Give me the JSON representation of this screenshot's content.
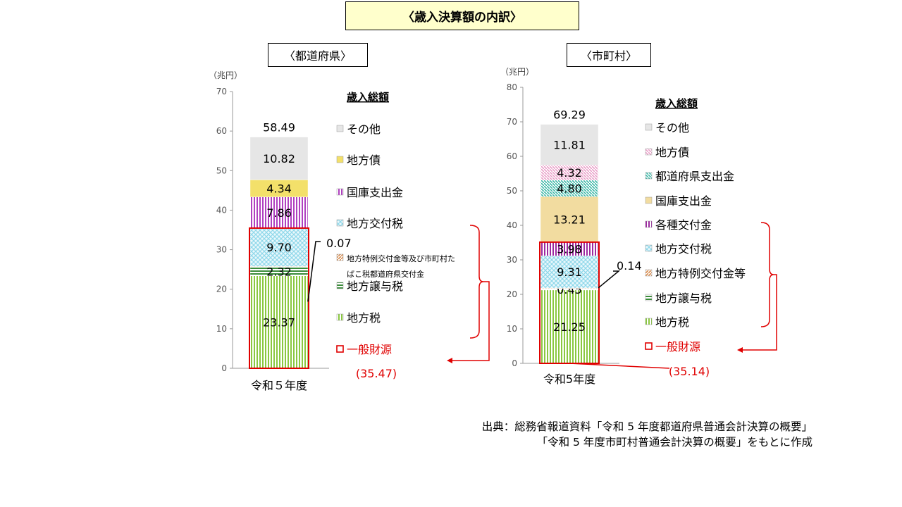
{
  "title": "〈歳入決算額の内訳〉",
  "source_line1": "出典：総務省報道資料「令和 5 年度都道府県普通会計決算の概要」",
  "source_line2": "「令和 5 年度市町村普通会計決算の概要」をもとに作成",
  "colors": {
    "other": "#e6e6e6",
    "bond": "#f3e06a",
    "treasury_pref": "#b040c0",
    "allocation": "#8fd8ea",
    "special": "#d98a4a",
    "transfer_tax": "#3a8c3a",
    "local_tax": "#8ac840",
    "general_outline": "#e00000",
    "bond_city": "#e9a0c8",
    "pref_disbursement": "#3fb8a8",
    "treasury_city": "#f2dca0",
    "grants": "#9c2aa0"
  },
  "chart_data": [
    {
      "type": "bar",
      "stacked": true,
      "panel_label": "〈都道府県〉",
      "unit_label": "（兆円）",
      "legend_title": "歳入総額",
      "category": "令和５年度",
      "total_label": "58.49",
      "ylim": [
        0,
        70
      ],
      "yticks": [
        0,
        10,
        20,
        30,
        40,
        50,
        60,
        70
      ],
      "series": [
        {
          "name": "地方税",
          "value": 23.37,
          "label": "23.37",
          "color_key": "local_tax",
          "pattern": "vert"
        },
        {
          "name": "地方譲与税",
          "value": 2.32,
          "label": "2.32",
          "color_key": "transfer_tax",
          "pattern": "horiz"
        },
        {
          "name": "地方特例交付金等及び市町村たばこ税都道府県交付金",
          "value": 0.07,
          "label": "0.07",
          "color_key": "special",
          "pattern": "diag",
          "callout": true
        },
        {
          "name": "地方交付税",
          "value": 9.7,
          "label": "9.70",
          "color_key": "allocation",
          "pattern": "cross"
        },
        {
          "name": "国庫支出金",
          "value": 7.86,
          "label": "7.86",
          "color_key": "treasury_pref",
          "pattern": "vert"
        },
        {
          "name": "地方債",
          "value": 4.34,
          "label": "4.34",
          "color_key": "bond",
          "pattern": "none"
        },
        {
          "name": "その他",
          "value": 10.82,
          "label": "10.82",
          "color_key": "other",
          "pattern": "none"
        }
      ],
      "legend": [
        "その他",
        "地方債",
        "国庫支出金",
        "地方交付税",
        "地方特例交付金等及び市町村たばこ税都道府県交付金",
        "地方譲与税",
        "地方税"
      ],
      "general_revenue_label": "一般財源",
      "general_revenue_value": "(35.47)"
    },
    {
      "type": "bar",
      "stacked": true,
      "panel_label": "〈市町村〉",
      "unit_label": "（兆円）",
      "legend_title": "歳入総額",
      "category": "令和5年度",
      "total_label": "69.29",
      "ylim": [
        0,
        80
      ],
      "yticks": [
        0,
        10,
        20,
        30,
        40,
        50,
        60,
        70,
        80
      ],
      "series": [
        {
          "name": "地方税",
          "value": 21.25,
          "label": "21.25",
          "color_key": "local_tax",
          "pattern": "vert"
        },
        {
          "name": "地方譲与税",
          "value": 0.45,
          "label": "0.45",
          "color_key": "transfer_tax",
          "pattern": "horiz"
        },
        {
          "name": "地方特例交付金等",
          "value": 0.14,
          "label": "0.14",
          "color_key": "special",
          "pattern": "diag",
          "callout": true
        },
        {
          "name": "地方交付税",
          "value": 9.31,
          "label": "9.31",
          "color_key": "allocation",
          "pattern": "cross"
        },
        {
          "name": "各種交付金",
          "value": 3.98,
          "label": "3.98",
          "color_key": "grants",
          "pattern": "vert"
        },
        {
          "name": "国庫支出金",
          "value": 13.21,
          "label": "13.21",
          "color_key": "treasury_city",
          "pattern": "none"
        },
        {
          "name": "都道府県支出金",
          "value": 4.8,
          "label": "4.80",
          "color_key": "pref_disbursement",
          "pattern": "diagr"
        },
        {
          "name": "地方債",
          "value": 4.32,
          "label": "4.32",
          "color_key": "bond_city",
          "pattern": "diagr"
        },
        {
          "name": "その他",
          "value": 11.81,
          "label": "11.81",
          "color_key": "other",
          "pattern": "none"
        }
      ],
      "legend": [
        "その他",
        "地方債",
        "都道府県支出金",
        "国庫支出金",
        "各種交付金",
        "地方交付税",
        "地方特例交付金等",
        "地方譲与税",
        "地方税"
      ],
      "general_revenue_label": "一般財源",
      "general_revenue_value": "(35.14)"
    }
  ]
}
